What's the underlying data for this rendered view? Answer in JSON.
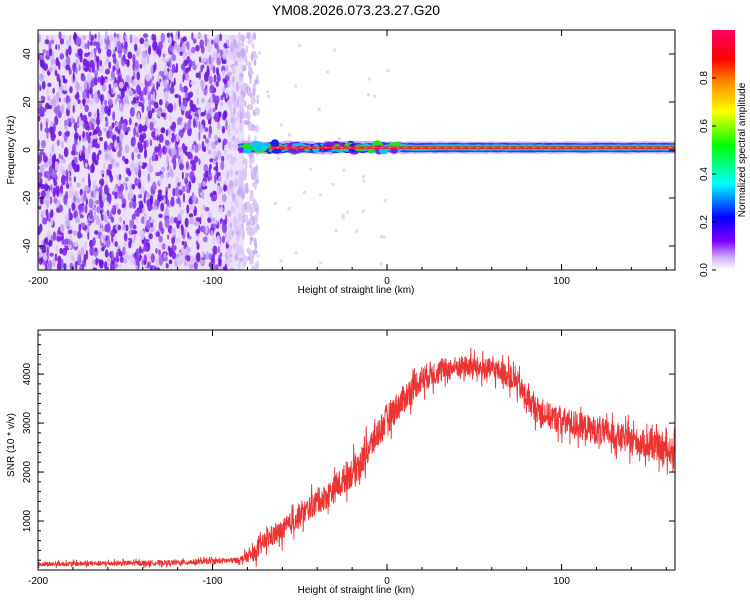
{
  "title": "YM08.2026.073.23.27.G20",
  "chart_data": [
    {
      "type": "heatmap",
      "name": "spectrogram",
      "xlabel": "Height of straight line (km)",
      "ylabel": "Frequency (Hz)",
      "xlim": [
        -200,
        165
      ],
      "ylim": [
        -50,
        50
      ],
      "xticks": [
        -200,
        -100,
        0,
        100
      ],
      "yticks": [
        -40,
        -20,
        0,
        20,
        40
      ],
      "noise_region_x": [
        -200,
        -82
      ],
      "noise_region_y": [
        -50,
        48
      ],
      "signal_line_freq": 1,
      "signal_start_x": -85,
      "colorbar": {
        "label": "Normalized spectral amplitude",
        "range": [
          0,
          1
        ],
        "ticks": [
          "0.0",
          "0.2",
          "0.4",
          "0.6",
          "0.8"
        ],
        "tick_values": [
          0,
          0.2,
          0.4,
          0.6,
          0.8
        ],
        "stops": [
          "#ffffff",
          "#d2b4f4",
          "#7f00ff",
          "#0000ff",
          "#00ffff",
          "#00ff00",
          "#ffff00",
          "#ff8c00",
          "#ff0000",
          "#ff0066"
        ]
      }
    },
    {
      "type": "line",
      "name": "snr",
      "xlabel": "Height of straight line (km)",
      "ylabel": "SNR (10 * v/v)",
      "xlim": [
        -200,
        165
      ],
      "ylim": [
        0,
        4900
      ],
      "xticks": [
        -200,
        -100,
        0,
        100
      ],
      "yticks": [
        1000,
        2000,
        3000,
        4000
      ],
      "color": "#ee3333",
      "envelope": {
        "x": [
          -200,
          -120,
          -85,
          -75,
          -70,
          -65,
          -60,
          -55,
          -50,
          -45,
          -40,
          -35,
          -30,
          -25,
          -20,
          -15,
          -10,
          -5,
          0,
          5,
          10,
          15,
          20,
          25,
          30,
          35,
          40,
          45,
          50,
          55,
          60,
          65,
          70,
          75,
          80,
          85,
          90,
          95,
          100,
          105,
          110,
          115,
          120,
          125,
          130,
          135,
          140,
          145,
          150,
          155,
          160,
          165
        ],
        "y": [
          120,
          150,
          200,
          350,
          600,
          700,
          800,
          950,
          1100,
          1250,
          1400,
          1500,
          1650,
          1850,
          2000,
          2200,
          2500,
          2800,
          3100,
          3300,
          3500,
          3750,
          3900,
          4000,
          4050,
          4100,
          4150,
          4150,
          4150,
          4100,
          4100,
          4050,
          3950,
          3800,
          3500,
          3300,
          3200,
          3100,
          3050,
          3000,
          2950,
          2900,
          2850,
          2800,
          2750,
          2700,
          2650,
          2600,
          2550,
          2500,
          2450,
          2400
        ]
      },
      "noise_amplitude": {
        "x": [
          -200,
          -85,
          -75,
          -60,
          -40,
          -20,
          0,
          20,
          40,
          60,
          80,
          100,
          130,
          165
        ],
        "y": [
          80,
          100,
          300,
          400,
          450,
          550,
          550,
          500,
          400,
          400,
          450,
          500,
          500,
          500
        ]
      }
    }
  ]
}
